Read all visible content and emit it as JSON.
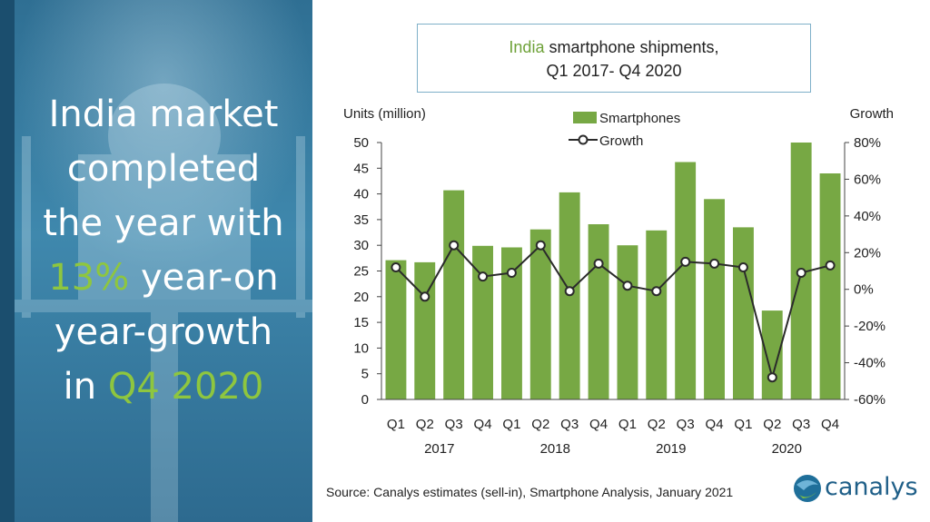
{
  "headline": {
    "line1": "India market",
    "line2": "completed",
    "line3": "the year with",
    "pct": "13%",
    "line4_rest": " year-on",
    "line5": "year-growth",
    "line6_pre": "in ",
    "q": "Q4 2020"
  },
  "title": {
    "accent": "India",
    "rest": " smartphone shipments,",
    "line2": "Q1 2017- Q4 2020"
  },
  "source": "Source: Canalys estimates (sell-in), Smartphone Analysis, January 2021",
  "logo_text": "canalys",
  "colors": {
    "bar": "#77a844",
    "line": "#2b2b2b",
    "accent": "#8ec63f",
    "panel": "#3a7fa6"
  },
  "chart_data": {
    "type": "bar",
    "title": "India smartphone shipments, Q1 2017- Q4 2020",
    "ylabel": "Units (million)",
    "y2label": "Growth",
    "categories": [
      "Q1",
      "Q2",
      "Q3",
      "Q4",
      "Q1",
      "Q2",
      "Q3",
      "Q4",
      "Q1",
      "Q2",
      "Q3",
      "Q4",
      "Q1",
      "Q2",
      "Q3",
      "Q4"
    ],
    "groups": [
      {
        "label": "2017",
        "span": 4
      },
      {
        "label": "2018",
        "span": 4
      },
      {
        "label": "2019",
        "span": 4
      },
      {
        "label": "2020",
        "span": 4
      }
    ],
    "series": [
      {
        "name": "Smartphones",
        "type": "bar",
        "axis": "left",
        "values": [
          27.1,
          26.7,
          40.7,
          29.9,
          29.6,
          33.1,
          40.3,
          34.1,
          30.0,
          32.9,
          46.2,
          39.0,
          33.5,
          17.3,
          50.0,
          44.0
        ]
      },
      {
        "name": "Growth",
        "type": "line",
        "axis": "right",
        "values": [
          12,
          -4,
          24,
          7,
          9,
          24,
          -1,
          14,
          2,
          -1,
          15,
          14,
          12,
          -48,
          9,
          13
        ]
      }
    ],
    "ylim": [
      0,
      50
    ],
    "yticks": [
      0,
      5,
      10,
      15,
      20,
      25,
      30,
      35,
      40,
      45,
      50
    ],
    "y2lim": [
      -60,
      80
    ],
    "y2ticks": [
      "-60%",
      "-40%",
      "-20%",
      "0%",
      "20%",
      "40%",
      "60%",
      "80%"
    ],
    "legend": "top-center",
    "grid": false
  }
}
